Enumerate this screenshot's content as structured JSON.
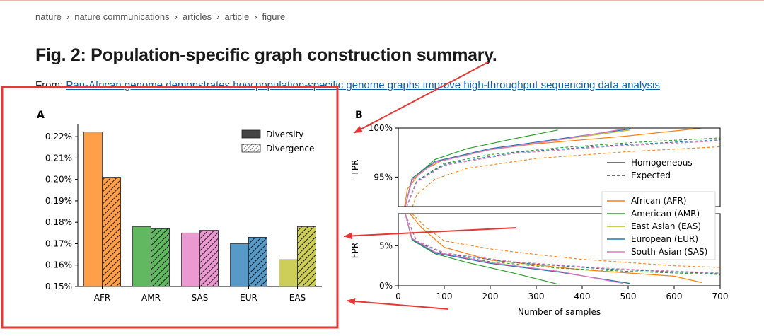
{
  "breadcrumbs": [
    "nature",
    "nature communications",
    "articles",
    "article",
    "figure"
  ],
  "title": "Fig. 2: Population-specific graph construction summary.",
  "from": {
    "label": "From:",
    "link_text": "Pan-African genome demonstrates how population-specific genome graphs improve high-throughput sequencing data analysis"
  },
  "colors": {
    "annotation_red": "#e53935",
    "AFR": "#ff7f0e",
    "AMR": "#2ca02c",
    "SAS": "#e377c2",
    "EUR": "#1f77b4",
    "EAS": "#bcbd22"
  },
  "chart_data": [
    {
      "panel": "A",
      "type": "bar",
      "categories": [
        "AFR",
        "AMR",
        "SAS",
        "EUR",
        "EAS"
      ],
      "series": [
        {
          "name": "Diversity",
          "values": [
            0.2222,
            0.178,
            0.175,
            0.17,
            0.1625
          ]
        },
        {
          "name": "Divergence",
          "values": [
            0.201,
            0.177,
            0.1762,
            0.173,
            0.178
          ]
        }
      ],
      "ylim": [
        0.15,
        0.225
      ],
      "yticks": [
        "0.15%",
        "0.16%",
        "0.17%",
        "0.18%",
        "0.19%",
        "0.20%",
        "0.21%",
        "0.22%"
      ],
      "legend_placement": "top-right"
    },
    {
      "panel": "B",
      "type": "line",
      "xlabel": "Number of samples",
      "xticks": [
        "0",
        "100",
        "200",
        "300",
        "400",
        "500",
        "600",
        "700"
      ],
      "xlim": [
        0,
        700
      ],
      "top": {
        "ylabel": "TPR",
        "yticks": [
          "95%",
          "100%"
        ],
        "ylim": [
          92,
          100
        ]
      },
      "bottom": {
        "ylabel": "FPR",
        "yticks": [
          "0%",
          "5%"
        ],
        "ylim": [
          0,
          9
        ]
      },
      "style_legend": [
        "Homogeneous",
        "Expected"
      ],
      "series": [
        {
          "name": "African (AFR)",
          "max_samples": 660,
          "tpr_homogeneous": [
            [
              10,
              91
            ],
            [
              20,
              93.8
            ],
            [
              50,
              95.6
            ],
            [
              100,
              96.8
            ],
            [
              200,
              97.8
            ],
            [
              300,
              98.4
            ],
            [
              400,
              98.8
            ],
            [
              500,
              99.2
            ],
            [
              660,
              100
            ]
          ],
          "tpr_expected": [
            [
              20,
              90.5
            ],
            [
              40,
              93.2
            ],
            [
              80,
              94.8
            ],
            [
              150,
              95.9
            ],
            [
              300,
              96.9
            ],
            [
              500,
              97.6
            ],
            [
              700,
              98.1
            ]
          ],
          "fpr_homogeneous": [
            [
              25,
              9
            ],
            [
              50,
              7.3
            ],
            [
              100,
              4.8
            ],
            [
              200,
              3.2
            ],
            [
              300,
              2.6
            ],
            [
              400,
              2
            ],
            [
              500,
              1.6
            ],
            [
              600,
              1.2
            ],
            [
              660,
              0.4
            ]
          ],
          "fpr_expected": [
            [
              30,
              9
            ],
            [
              60,
              7.3
            ],
            [
              100,
              5.6
            ],
            [
              200,
              4.6
            ],
            [
              300,
              3.9
            ],
            [
              400,
              3.3
            ],
            [
              500,
              2.9
            ],
            [
              600,
              2.5
            ],
            [
              700,
              2.3
            ]
          ]
        },
        {
          "name": "American (AMR)",
          "max_samples": 347,
          "tpr_homogeneous": [
            [
              10,
              91
            ],
            [
              30,
              94.8
            ],
            [
              80,
              96.8
            ],
            [
              150,
              97.9
            ],
            [
              250,
              98.9
            ],
            [
              347,
              99.8
            ]
          ],
          "tpr_expected": [
            [
              10,
              91
            ],
            [
              40,
              94.6
            ],
            [
              100,
              96.4
            ],
            [
              200,
              97.3
            ],
            [
              350,
              98
            ],
            [
              500,
              98.5
            ],
            [
              700,
              99
            ]
          ],
          "fpr_homogeneous": [
            [
              15,
              9
            ],
            [
              30,
              5.7
            ],
            [
              80,
              4
            ],
            [
              150,
              2.9
            ],
            [
              250,
              1.6
            ],
            [
              347,
              0.2
            ]
          ],
          "fpr_expected": [
            [
              15,
              9
            ],
            [
              40,
              5.5
            ],
            [
              100,
              4
            ],
            [
              200,
              3
            ],
            [
              350,
              2.2
            ],
            [
              500,
              1.8
            ],
            [
              700,
              1.4
            ]
          ]
        },
        {
          "name": "East Asian (EAS)",
          "max_samples": 504,
          "tpr_homogeneous": [
            [
              10,
              91
            ],
            [
              30,
              94.8
            ],
            [
              80,
              96.5
            ],
            [
              200,
              97.8
            ],
            [
              350,
              98.8
            ],
            [
              504,
              99.8
            ]
          ],
          "tpr_expected": [
            [
              10,
              91
            ],
            [
              40,
              94.5
            ],
            [
              100,
              96.2
            ],
            [
              250,
              97.4
            ],
            [
              450,
              98.1
            ],
            [
              700,
              98.7
            ]
          ],
          "fpr_homogeneous": [
            [
              15,
              9
            ],
            [
              30,
              5.8
            ],
            [
              80,
              4.1
            ],
            [
              200,
              2.8
            ],
            [
              350,
              1.7
            ],
            [
              504,
              0.3
            ]
          ],
          "fpr_expected": [
            [
              15,
              9
            ],
            [
              40,
              5.6
            ],
            [
              100,
              4.1
            ],
            [
              250,
              2.9
            ],
            [
              450,
              2.1
            ],
            [
              700,
              1.5
            ]
          ]
        },
        {
          "name": "European (EUR)",
          "max_samples": 503,
          "tpr_homogeneous": [
            [
              10,
              91
            ],
            [
              30,
              94.9
            ],
            [
              80,
              96.6
            ],
            [
              200,
              97.9
            ],
            [
              350,
              98.9
            ],
            [
              503,
              99.9
            ]
          ],
          "tpr_expected": [
            [
              10,
              91
            ],
            [
              40,
              94.6
            ],
            [
              100,
              96.3
            ],
            [
              250,
              97.5
            ],
            [
              450,
              98.2
            ],
            [
              700,
              98.8
            ]
          ],
          "fpr_homogeneous": [
            [
              15,
              9
            ],
            [
              30,
              5.8
            ],
            [
              80,
              4.1
            ],
            [
              200,
              2.8
            ],
            [
              350,
              1.7
            ],
            [
              503,
              0.3
            ]
          ],
          "fpr_expected": [
            [
              15,
              9
            ],
            [
              40,
              5.5
            ],
            [
              100,
              4
            ],
            [
              250,
              2.9
            ],
            [
              450,
              2.1
            ],
            [
              700,
              1.5
            ]
          ]
        },
        {
          "name": "South Asian (SAS)",
          "max_samples": 489,
          "tpr_homogeneous": [
            [
              10,
              91
            ],
            [
              30,
              94.7
            ],
            [
              80,
              96.5
            ],
            [
              200,
              97.8
            ],
            [
              350,
              98.8
            ],
            [
              489,
              99.9
            ]
          ],
          "tpr_expected": [
            [
              10,
              91
            ],
            [
              40,
              94.5
            ],
            [
              100,
              96.2
            ],
            [
              250,
              97.4
            ],
            [
              450,
              98.1
            ],
            [
              700,
              98.7
            ]
          ],
          "fpr_homogeneous": [
            [
              15,
              9
            ],
            [
              30,
              5.9
            ],
            [
              80,
              4.2
            ],
            [
              200,
              2.9
            ],
            [
              350,
              1.8
            ],
            [
              489,
              0.3
            ]
          ],
          "fpr_expected": [
            [
              15,
              9
            ],
            [
              40,
              5.6
            ],
            [
              100,
              4.1
            ],
            [
              250,
              3
            ],
            [
              450,
              2.2
            ],
            [
              700,
              1.6
            ]
          ]
        }
      ]
    }
  ]
}
